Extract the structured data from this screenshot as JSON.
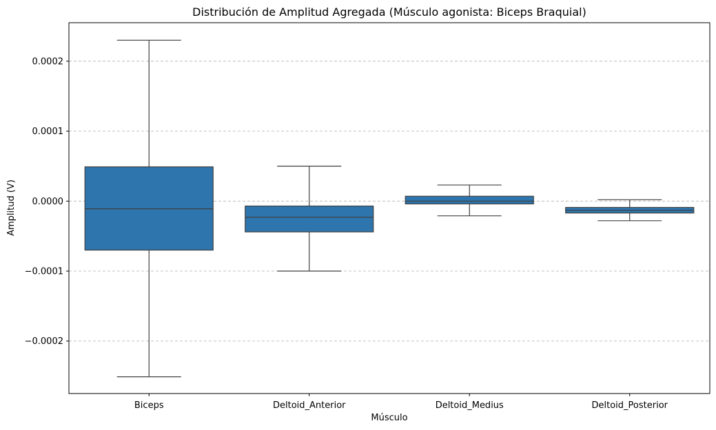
{
  "chart_data": {
    "type": "boxplot",
    "title": "Distribución de Amplitud Agregada (Músculo agonista: Biceps Braquial)",
    "xlabel": "Músculo",
    "ylabel": "Amplitud (V)",
    "ylim": [
      -0.000275,
      0.000255
    ],
    "grid": {
      "y": true,
      "x": false,
      "style": "dashed"
    },
    "yticks": [
      -0.0002,
      -0.0001,
      0.0,
      0.0001,
      0.0002
    ],
    "ytick_labels": [
      "−0.0002",
      "−0.0001",
      "0.0000",
      "0.0001",
      "0.0002"
    ],
    "categories": [
      "Biceps",
      "Deltoid_Anterior",
      "Deltoid_Medius",
      "Deltoid_Posterior"
    ],
    "color": "#2e75ad",
    "line_color": "#3f3f3f",
    "boxes": [
      {
        "category": "Biceps",
        "whisker_low": -0.000251,
        "q1": -7e-05,
        "median": -1.1e-05,
        "q3": 4.9e-05,
        "whisker_high": 0.00023
      },
      {
        "category": "Deltoid_Anterior",
        "whisker_low": -0.0001,
        "q1": -4.4e-05,
        "median": -2.3e-05,
        "q3": -7e-06,
        "whisker_high": 5e-05
      },
      {
        "category": "Deltoid_Medius",
        "whisker_low": -2.1e-05,
        "q1": -4e-06,
        "median": 0.0,
        "q3": 7e-06,
        "whisker_high": 2.3e-05
      },
      {
        "category": "Deltoid_Posterior",
        "whisker_low": -2.8e-05,
        "q1": -1.7e-05,
        "median": -1.3e-05,
        "q3": -9e-06,
        "whisker_high": 2e-06
      }
    ]
  }
}
